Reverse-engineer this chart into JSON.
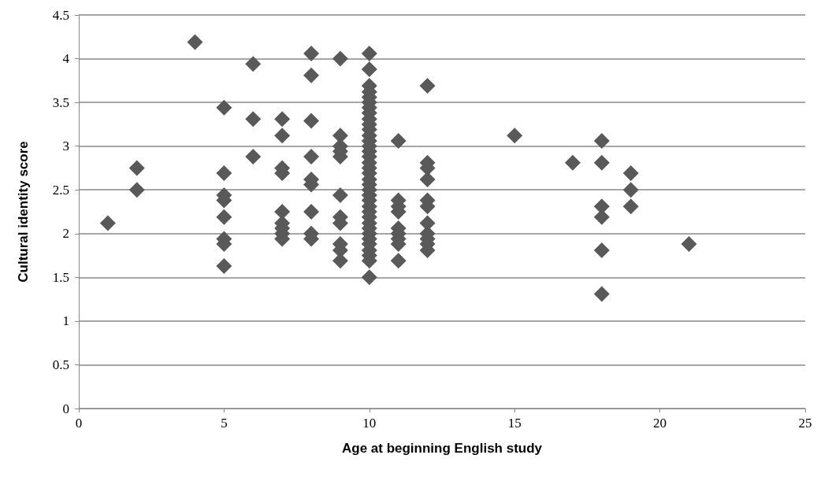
{
  "chart_data": {
    "type": "scatter",
    "xlabel": "Age at beginning English study",
    "ylabel": "Cultural identity score",
    "x": [
      1,
      2,
      2,
      4,
      5,
      5,
      5,
      5,
      5,
      5,
      5,
      5,
      6,
      6,
      6,
      7,
      7,
      7,
      7,
      7,
      7,
      7,
      7,
      7,
      8,
      8,
      8,
      8,
      8,
      8,
      8,
      8,
      8,
      9,
      9,
      9,
      9,
      9,
      9,
      9,
      9,
      9,
      9,
      9,
      10,
      10,
      10,
      10,
      10,
      10,
      10,
      10,
      10,
      10,
      10,
      10,
      10,
      10,
      10,
      10,
      10,
      10,
      10,
      10,
      10,
      10,
      10,
      10,
      10,
      10,
      10,
      10,
      10,
      10,
      10,
      10,
      10,
      10,
      10,
      10,
      11,
      11,
      11,
      11,
      11,
      11,
      11,
      11,
      11,
      12,
      12,
      12,
      12,
      12,
      12,
      12,
      12,
      12,
      12,
      12,
      15,
      17,
      18,
      18,
      18,
      18,
      18,
      18,
      19,
      19,
      19,
      21
    ],
    "values": [
      2.12,
      2.75,
      2.5,
      4.19,
      3.44,
      2.69,
      2.44,
      2.38,
      2.19,
      1.94,
      1.88,
      1.63,
      3.94,
      3.31,
      2.88,
      3.31,
      3.12,
      2.75,
      2.69,
      2.25,
      2.12,
      2.06,
      2.0,
      1.94,
      4.06,
      3.81,
      3.29,
      2.88,
      2.62,
      2.56,
      2.25,
      2.0,
      1.94,
      4.0,
      3.12,
      3.0,
      2.94,
      2.88,
      2.44,
      2.19,
      2.12,
      1.88,
      1.81,
      1.69,
      4.06,
      3.88,
      3.69,
      3.62,
      3.56,
      3.5,
      3.44,
      3.38,
      3.31,
      3.25,
      3.19,
      3.12,
      3.06,
      3.0,
      2.94,
      2.88,
      2.81,
      2.75,
      2.69,
      2.62,
      2.56,
      2.5,
      2.44,
      2.38,
      2.31,
      2.25,
      2.19,
      2.12,
      2.06,
      2.0,
      1.94,
      1.88,
      1.81,
      1.75,
      1.69,
      1.5,
      3.06,
      2.38,
      2.31,
      2.25,
      2.06,
      2.0,
      1.94,
      1.88,
      1.69,
      3.69,
      2.81,
      2.75,
      2.62,
      2.38,
      2.31,
      2.12,
      2.0,
      1.94,
      1.88,
      1.81,
      3.12,
      2.81,
      3.06,
      2.81,
      2.31,
      2.19,
      1.81,
      1.31,
      2.69,
      2.5,
      2.31,
      1.88
    ],
    "color": "#595959",
    "marker": "diamond",
    "grid": "y",
    "xlim": [
      0,
      25
    ],
    "xticks": [
      0,
      5,
      10,
      15,
      20,
      25
    ],
    "ylim": [
      0,
      4.5
    ],
    "yticks": [
      0,
      0.5,
      1,
      1.5,
      2,
      2.5,
      3,
      3.5,
      4,
      4.5
    ]
  }
}
